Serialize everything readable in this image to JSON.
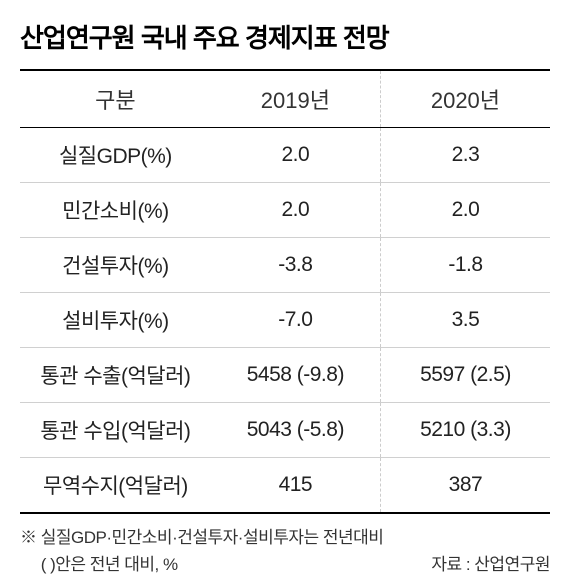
{
  "title": "산업연구원 국내 주요 경제지표 전망",
  "table": {
    "columns": [
      "구분",
      "2019년",
      "2020년"
    ],
    "rows": [
      [
        "실질GDP(%)",
        "2.0",
        "2.3"
      ],
      [
        "민간소비(%)",
        "2.0",
        "2.0"
      ],
      [
        "건설투자(%)",
        "-3.8",
        "-1.8"
      ],
      [
        "설비투자(%)",
        "-7.0",
        "3.5"
      ],
      [
        "통관 수출(억달러)",
        "5458 (-9.8)",
        "5597 (2.5)"
      ],
      [
        "통관 수입(억달러)",
        "5043 (-5.8)",
        "5210 (3.3)"
      ],
      [
        "무역수지(억달러)",
        "415",
        "387"
      ]
    ],
    "header_bg": "#ffffff",
    "border_color": "#000000",
    "row_border_color": "#d0d0d0",
    "dashed_divider_color": "#cccccc",
    "title_fontsize": 26,
    "header_fontsize": 22,
    "cell_fontsize": 21,
    "footnote_fontsize": 17
  },
  "footnote": {
    "line1": "※ 실질GDP·민간소비·건설투자·설비투자는 전년대비",
    "line2_left": "　 ( )안은 전년 대비, %",
    "line2_right": "자료 : 산업연구원"
  }
}
